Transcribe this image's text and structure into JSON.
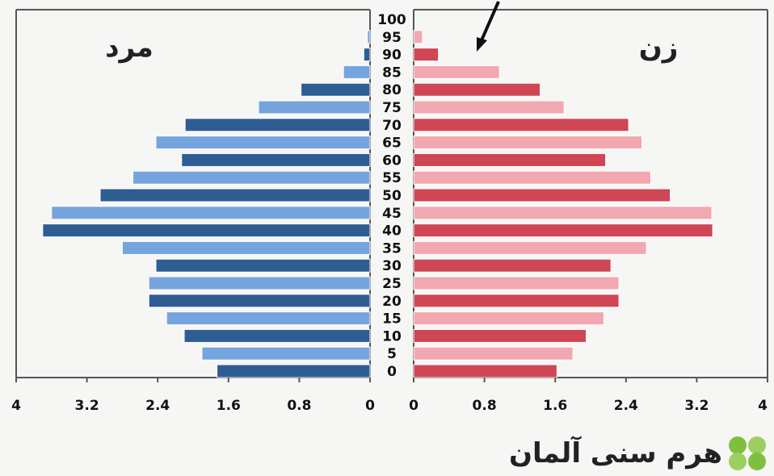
{
  "caption": "هرم سنی آلمان",
  "chart_data": {
    "type": "bar",
    "orientation": "horizontal",
    "subtype": "population-pyramid",
    "categories": [
      "0",
      "5",
      "10",
      "15",
      "20",
      "25",
      "30",
      "35",
      "40",
      "45",
      "50",
      "55",
      "60",
      "65",
      "70",
      "75",
      "80",
      "85",
      "90",
      "95",
      "100"
    ],
    "series": [
      {
        "name": "مرد",
        "side": "left",
        "values": [
          1.73,
          1.9,
          2.1,
          2.3,
          2.5,
          2.5,
          2.42,
          2.8,
          3.7,
          3.6,
          3.05,
          2.68,
          2.13,
          2.42,
          2.09,
          1.26,
          0.78,
          0.3,
          0.07,
          0.03,
          0
        ],
        "colors": [
          "#2e5d93",
          "#75a5dc"
        ]
      },
      {
        "name": "زن",
        "side": "right",
        "values": [
          1.62,
          1.8,
          1.95,
          2.15,
          2.32,
          2.32,
          2.23,
          2.63,
          3.38,
          3.37,
          2.9,
          2.68,
          2.17,
          2.58,
          2.43,
          1.7,
          1.43,
          0.97,
          0.28,
          0.1,
          0
        ],
        "colors": [
          "#cf4654",
          "#f2a8b0"
        ]
      }
    ],
    "left_axis_ticks": [
      "4",
      "3.2",
      "2.4",
      "1.6",
      "0.8",
      "0"
    ],
    "right_axis_ticks": [
      "0",
      "0.8",
      "1.6",
      "2.4",
      "3.2",
      "4"
    ],
    "xlim": [
      0,
      4
    ],
    "label_left": "مرد",
    "label_right": "زن",
    "annotation": "arrow"
  }
}
